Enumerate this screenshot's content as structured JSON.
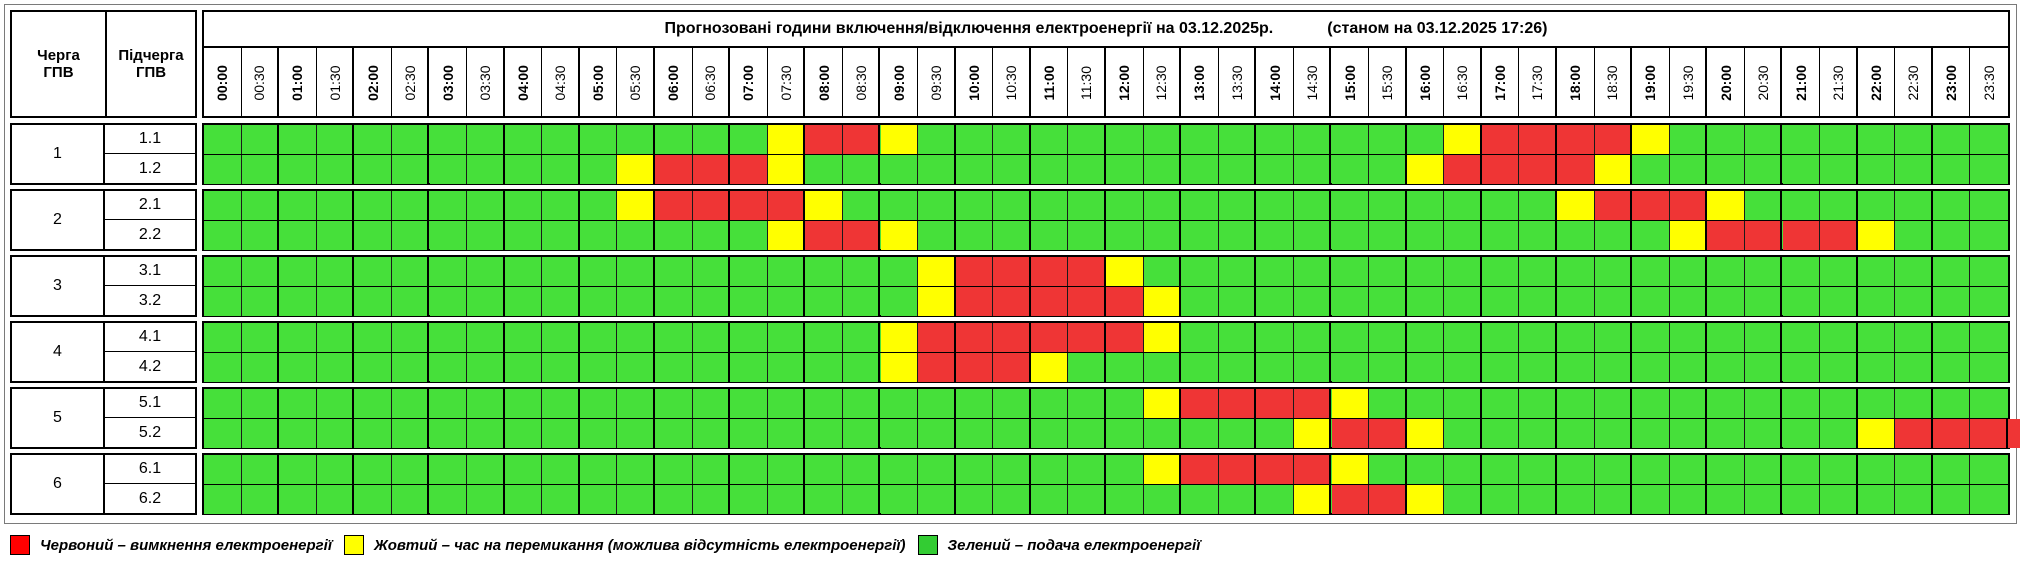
{
  "header": {
    "queue_label": "Черга\nГПВ",
    "subqueue_label": "Підчерга\nГПВ",
    "title_main": "Прогнозовані години включення/відключення електроенергії на 03.12.2025р.",
    "title_status": "(станом на 03.12.2025 17:26)"
  },
  "time_labels": [
    "00:00",
    "00:30",
    "01:00",
    "01:30",
    "02:00",
    "02:30",
    "03:00",
    "03:30",
    "04:00",
    "04:30",
    "05:00",
    "05:30",
    "06:00",
    "06:30",
    "07:00",
    "07:30",
    "08:00",
    "08:30",
    "09:00",
    "09:30",
    "10:00",
    "10:30",
    "11:00",
    "11:30",
    "12:00",
    "12:30",
    "13:00",
    "13:30",
    "14:00",
    "14:30",
    "15:00",
    "15:30",
    "16:00",
    "16:30",
    "17:00",
    "17:30",
    "18:00",
    "18:30",
    "19:00",
    "19:30",
    "20:00",
    "20:30",
    "21:00",
    "21:30",
    "22:00",
    "22:30",
    "23:00",
    "23:30"
  ],
  "colors": {
    "R": "#ef3535",
    "Y": "#ffff00",
    "G": "#46e03a",
    "legend_red": "#ff0000",
    "legend_green": "#33cc33"
  },
  "groups": [
    {
      "queue": "1",
      "rows": [
        {
          "sub": "1.1",
          "slots": "GGGGGGGGGGGGGGGYRRYGGGGGGGGGGGGGGYRRRRYGGGGGGGGG"
        },
        {
          "sub": "1.2",
          "slots": "GGGGGGGGGGGYRRRYGGGGGGGGGGGGGGGGYRRRRYGGGGGGGGGG"
        }
      ]
    },
    {
      "queue": "2",
      "rows": [
        {
          "sub": "2.1",
          "slots": "GGGGGGGGGGGYRRRRYGGGGGGGGGGGGGGGGGGGYRRRYGGGGGGG"
        },
        {
          "sub": "2.2",
          "slots": "GGGGGGGGGGGGGGGYRRYGGGGGGGGGGGGGGGGGGGGYRRRRYGGG"
        }
      ]
    },
    {
      "queue": "3",
      "rows": [
        {
          "sub": "3.1",
          "slots": "GGGGGGGGGGGGGGGGGGGYRRRRYGGGGGGGGGGGGGGGGGGGGGGG"
        },
        {
          "sub": "3.2",
          "slots": "GGGGGGGGGGGGGGGGGGGYRRRRRYGGGGGGGGGGGGGGGGGGGGGG"
        }
      ]
    },
    {
      "queue": "4",
      "rows": [
        {
          "sub": "4.1",
          "slots": "GGGGGGGGGGGGGGGGGGYRRRRRRYGGGGGGGGGGGGGGGGGGGGGG"
        },
        {
          "sub": "4.2",
          "slots": "GGGGGGGGGGGGGGGGGGYRRRYGGGGGGGGGGGGGGGGGGGGGGGGG"
        }
      ]
    },
    {
      "queue": "5",
      "rows": [
        {
          "sub": "5.1",
          "slots": "GGGGGGGGGGGGGGGGGGGGGGGGGYRRRRYGGGGGGGGGGGGGGGGG"
        },
        {
          "sub": "5.2",
          "slots": "GGGGGGGGGGGGGGGGGGGGGGGGGGGGGYRRYGGGGGGGGGGGYRRRR"
        }
      ]
    },
    {
      "queue": "6",
      "rows": [
        {
          "sub": "6.1",
          "slots": "GGGGGGGGGGGGGGGGGGGGGGGGGYRRRRYGGGGGGGGGGGGGGGGG"
        },
        {
          "sub": "6.2",
          "slots": "GGGGGGGGGGGGGGGGGGGGGGGGGGGGGYRRYGGGGGGGGGGGGGGG"
        }
      ]
    }
  ],
  "legend": {
    "red": "Червоний – вимкнення електроенергії",
    "yellow": "Жовтий – час на перемикання (можлива відсутність електроенергії)",
    "green": "Зелений – подача електроенергії"
  }
}
